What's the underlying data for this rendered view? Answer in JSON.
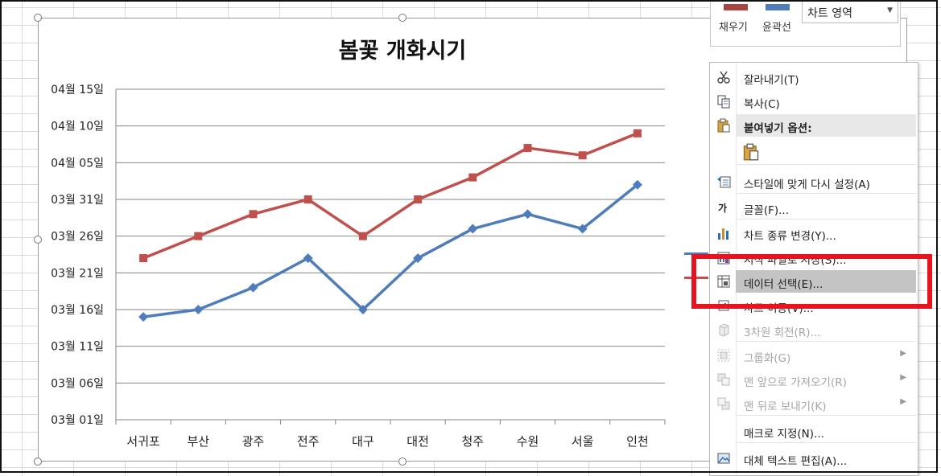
{
  "mini_toolbar": {
    "fill_label": "채우기",
    "outline_label": "윤곽선",
    "element_select": "차트 영역",
    "fill_color": "#a94442",
    "outline_color": "#4f7dbb"
  },
  "context_menu": {
    "cut": "잘라내기(T)",
    "copy": "복사(C)",
    "paste_options": "붙여넣기 옵션:",
    "reset_style": "스타일에 맞게 다시 설정(A)",
    "font_icon_glyph": "가",
    "font": "글꼴(F)...",
    "change_chart_type": "차트 종류 변경(Y)...",
    "save_template": "서식 파일로 저장(S)...",
    "select_data": "데이터 선택(E)...",
    "move_chart": "차트 이동(V)...",
    "rotate_3d": "3차원 회전(R)...",
    "group": "그룹화(G)",
    "bring_front": "맨 앞으로 가져오기(R)",
    "send_back": "맨 뒤로 보내기(K)",
    "assign_macro": "매크로 지정(N)...",
    "alt_text": "대체 텍스트 편집(A)..."
  },
  "chart_data": {
    "type": "line",
    "title": "봄꽃 개화시기",
    "categories": [
      "서귀포",
      "부산",
      "광주",
      "전주",
      "대구",
      "대전",
      "청주",
      "수원",
      "서울",
      "인천"
    ],
    "y_ticks": [
      "03월 01일",
      "03월 06일",
      "03월 11일",
      "03월 16일",
      "03월 21일",
      "03월 26일",
      "03월 31일",
      "04월 05일",
      "04월 10일",
      "04월 15일"
    ],
    "y_range_days": [
      0,
      45
    ],
    "ylim": [
      "03-01",
      "04-15"
    ],
    "grid": true,
    "series": [
      {
        "color": "#4f7dbb",
        "marker": "diamond",
        "dates": [
          "03-15",
          "03-16",
          "03-19",
          "03-23",
          "03-16",
          "03-23",
          "03-27",
          "03-29",
          "03-27",
          "04-02"
        ]
      },
      {
        "color": "#c0504d",
        "marker": "square",
        "dates": [
          "03-23",
          "03-26",
          "03-29",
          "03-31",
          "03-26",
          "03-31",
          "04-03",
          "04-07",
          "04-06",
          "04-09"
        ]
      }
    ]
  },
  "colors": {
    "highlight_box": "#e6141f"
  }
}
